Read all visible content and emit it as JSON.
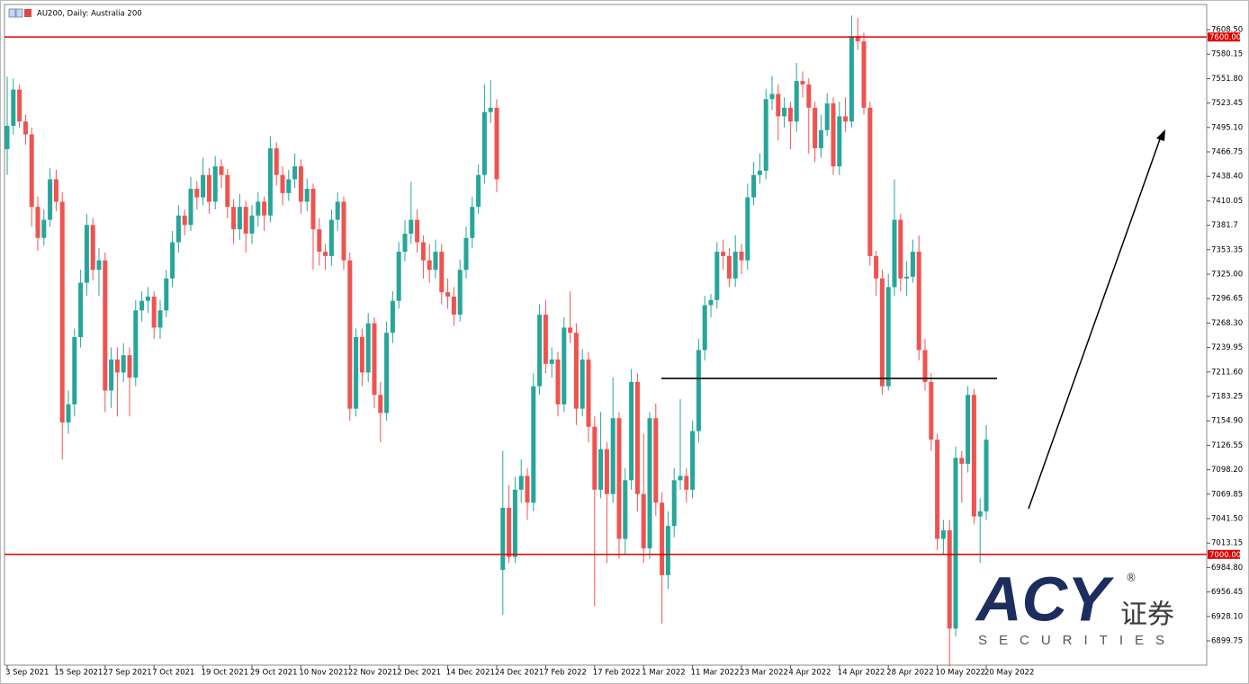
{
  "chart_data": {
    "type": "candlestick",
    "title": "AU200, Daily:  Australia 200",
    "categories": [
      "3 Sep 2021",
      null,
      null,
      null,
      null,
      null,
      null,
      null,
      "15 Sep 2021",
      null,
      null,
      null,
      null,
      null,
      null,
      null,
      "27 Sep 2021",
      null,
      null,
      null,
      null,
      null,
      null,
      null,
      "7 Oct 2021",
      null,
      null,
      null,
      null,
      null,
      null,
      null,
      "19 Oct 2021",
      null,
      null,
      null,
      null,
      null,
      null,
      null,
      "29 Oct 2021",
      null,
      null,
      null,
      null,
      null,
      null,
      null,
      "10 Nov 2021",
      null,
      null,
      null,
      null,
      null,
      null,
      null,
      "22 Nov 2021",
      null,
      null,
      null,
      null,
      null,
      null,
      null,
      "2 Dec 2021",
      null,
      null,
      null,
      null,
      null,
      null,
      null,
      "14 Dec 2021",
      null,
      null,
      null,
      null,
      null,
      null,
      null,
      "24 Dec 2021",
      null,
      null,
      null,
      null,
      null,
      null,
      null,
      "7 Feb 2022",
      null,
      null,
      null,
      null,
      null,
      null,
      null,
      "17 Feb 2022",
      null,
      null,
      null,
      null,
      null,
      null,
      null,
      "1 Mar 2022",
      null,
      null,
      null,
      null,
      null,
      null,
      null,
      "11 Mar 2022",
      null,
      null,
      null,
      null,
      null,
      null,
      null,
      "23 Mar 2022",
      null,
      null,
      null,
      null,
      null,
      null,
      null,
      "4 Apr 2022",
      null,
      null,
      null,
      null,
      null,
      null,
      null,
      "14 Apr 2022",
      null,
      null,
      null,
      null,
      null,
      null,
      null,
      "28 Apr 2022",
      null,
      null,
      null,
      null,
      null,
      null,
      null,
      "10 May 2022",
      null,
      null,
      null,
      null,
      null,
      null,
      null,
      "20 May 2022"
    ],
    "open": [
      7470,
      7497,
      7539,
      7502,
      7487,
      7403,
      7367,
      7388,
      7435,
      7409,
      7153,
      7174,
      7252,
      7315,
      7382,
      7330,
      7341,
      7190,
      7226,
      7211,
      7231,
      7205,
      7283,
      7294,
      7299,
      7263,
      7283,
      7320,
      7362,
      7393,
      7382,
      7424,
      7414,
      7440,
      7409,
      7450,
      7440,
      7403,
      7377,
      7403,
      7372,
      7393,
      7409,
      7393,
      7471,
      7440,
      7419,
      7435,
      7450,
      7409,
      7424,
      7377,
      7351,
      7346,
      7388,
      7409,
      7341,
      7169,
      7252,
      7211,
      7268,
      7185,
      7164,
      7257,
      7294,
      7351,
      7372,
      7388,
      7362,
      7341,
      7330,
      7351,
      7304,
      7299,
      7278,
      7330,
      7367,
      7403,
      7440,
      7513,
      7518,
      6982,
      7054,
      6997,
      7075,
      7091,
      7060,
      7195,
      7278,
      7221,
      7226,
      7174,
      7263,
      7257,
      7169,
      7226,
      7148,
      7075,
      7122,
      7070,
      7158,
      7018,
      7086,
      7200,
      7070,
      7007,
      7158,
      7060,
      6976,
      7033,
      7086,
      7091,
      7075,
      7143,
      7237,
      7289,
      7295,
      7351,
      7346,
      7320,
      7351,
      7341,
      7414,
      7440,
      7445,
      7528,
      7534,
      7508,
      7518,
      7502,
      7549,
      7545,
      7518,
      7471,
      7492,
      7523,
      7450,
      7508,
      7502,
      7601,
      7595,
      7518,
      7346,
      7320,
      7195,
      7310,
      7388,
      7320,
      7322,
      7351,
      7237,
      7200,
      7133,
      7018,
      7028,
      6914,
      7112,
      7105,
      7185,
      7044,
      7050
    ],
    "high": [
      7554,
      7552,
      7545,
      7510,
      7495,
      7415,
      7400,
      7448,
      7446,
      7420,
      7190,
      7262,
      7330,
      7395,
      7390,
      7355,
      7350,
      7240,
      7240,
      7245,
      7240,
      7295,
      7305,
      7310,
      7305,
      7295,
      7330,
      7375,
      7405,
      7400,
      7438,
      7433,
      7460,
      7448,
      7462,
      7458,
      7447,
      7412,
      7418,
      7410,
      7405,
      7420,
      7415,
      7485,
      7478,
      7450,
      7446,
      7465,
      7458,
      7436,
      7430,
      7390,
      7360,
      7400,
      7420,
      7415,
      7350,
      7262,
      7262,
      7280,
      7275,
      7200,
      7270,
      7305,
      7362,
      7388,
      7432,
      7400,
      7370,
      7360,
      7365,
      7360,
      7320,
      7310,
      7342,
      7380,
      7415,
      7452,
      7545,
      7550,
      7528,
      7120,
      7080,
      7090,
      7110,
      7100,
      7210,
      7290,
      7295,
      7240,
      7235,
      7275,
      7305,
      7268,
      7238,
      7235,
      7160,
      7165,
      7130,
      7205,
      7165,
      7100,
      7215,
      7210,
      7140,
      7165,
      7175,
      7072,
      7050,
      7100,
      7180,
      7100,
      7155,
      7250,
      7300,
      7302,
      7362,
      7365,
      7355,
      7370,
      7360,
      7430,
      7455,
      7465,
      7540,
      7555,
      7545,
      7530,
      7525,
      7570,
      7560,
      7552,
      7525,
      7510,
      7535,
      7530,
      7525,
      7530,
      7625,
      7622,
      7605,
      7525,
      7352,
      7330,
      7325,
      7435,
      7395,
      7340,
      7365,
      7370,
      7250,
      7210,
      7140,
      7040,
      7040,
      7125,
      7120,
      7195,
      7192,
      7065,
      7150
    ],
    "low": [
      7440,
      7487,
      7495,
      7475,
      7380,
      7352,
      7358,
      7380,
      7398,
      7110,
      7140,
      7160,
      7240,
      7300,
      7318,
      7300,
      7165,
      7170,
      7160,
      7200,
      7160,
      7195,
      7270,
      7280,
      7250,
      7250,
      7275,
      7310,
      7350,
      7370,
      7375,
      7400,
      7405,
      7395,
      7400,
      7425,
      7390,
      7360,
      7365,
      7350,
      7360,
      7380,
      7375,
      7385,
      7428,
      7405,
      7410,
      7425,
      7395,
      7398,
      7330,
      7335,
      7330,
      7335,
      7375,
      7330,
      7155,
      7160,
      7195,
      7200,
      7170,
      7130,
      7155,
      7245,
      7285,
      7340,
      7360,
      7350,
      7320,
      7315,
      7320,
      7290,
      7285,
      7265,
      7270,
      7320,
      7355,
      7395,
      7430,
      7500,
      7420,
      6930,
      6990,
      6990,
      7060,
      7040,
      7050,
      7185,
      7210,
      7205,
      7160,
      7165,
      7245,
      7150,
      7160,
      7130,
      6940,
      7065,
      6990,
      7060,
      6995,
      7000,
      7075,
      7050,
      6990,
      6995,
      7045,
      6920,
      6960,
      7020,
      7075,
      7060,
      7065,
      7130,
      7225,
      7275,
      7285,
      7330,
      7310,
      7310,
      7325,
      7330,
      7405,
      7430,
      7435,
      7515,
      7480,
      7495,
      7470,
      7490,
      7530,
      7465,
      7455,
      7460,
      7485,
      7440,
      7440,
      7490,
      7495,
      7585,
      7510,
      7335,
      7300,
      7185,
      7190,
      7300,
      7305,
      7300,
      7315,
      7225,
      7190,
      7120,
      7005,
      7000,
      6870,
      6905,
      7060,
      7095,
      7035,
      6990,
      7040
    ],
    "close": [
      7497,
      7539,
      7502,
      7487,
      7403,
      7367,
      7388,
      7435,
      7409,
      7153,
      7174,
      7252,
      7315,
      7382,
      7330,
      7341,
      7190,
      7226,
      7211,
      7231,
      7205,
      7283,
      7294,
      7299,
      7263,
      7283,
      7320,
      7362,
      7393,
      7382,
      7424,
      7414,
      7440,
      7409,
      7450,
      7440,
      7403,
      7377,
      7403,
      7372,
      7393,
      7409,
      7393,
      7471,
      7440,
      7419,
      7435,
      7450,
      7409,
      7424,
      7377,
      7351,
      7346,
      7388,
      7409,
      7341,
      7169,
      7252,
      7211,
      7268,
      7185,
      7164,
      7257,
      7294,
      7351,
      7372,
      7388,
      7362,
      7341,
      7330,
      7351,
      7304,
      7299,
      7278,
      7330,
      7367,
      7403,
      7440,
      7513,
      7518,
      7435,
      7054,
      6997,
      7075,
      7091,
      7060,
      7195,
      7278,
      7221,
      7226,
      7174,
      7263,
      7257,
      7169,
      7226,
      7148,
      7075,
      7122,
      7070,
      7158,
      7018,
      7086,
      7200,
      7070,
      7007,
      7158,
      7060,
      6976,
      7033,
      7086,
      7091,
      7075,
      7143,
      7237,
      7289,
      7295,
      7351,
      7346,
      7320,
      7351,
      7341,
      7414,
      7440,
      7445,
      7528,
      7534,
      7508,
      7518,
      7502,
      7549,
      7545,
      7518,
      7471,
      7492,
      7523,
      7450,
      7508,
      7502,
      7601,
      7595,
      7518,
      7346,
      7320,
      7195,
      7310,
      7388,
      7320,
      7322,
      7351,
      7237,
      7200,
      7133,
      7018,
      7028,
      6914,
      7112,
      7105,
      7185,
      7044,
      7050,
      7133
    ],
    "up_color": "#26a69a",
    "down_color": "#ef5350",
    "ylim": [
      6871.6,
      7637.7
    ],
    "yticks": [
      {
        "value": 7608.5,
        "label": "7608.50"
      },
      7580.15,
      {
        "value": 7551.8,
        "label": "7551.80"
      },
      7523.45,
      {
        "value": 7495.1,
        "label": "7495.10"
      },
      7466.75,
      {
        "value": 7438.4,
        "label": "7438.40"
      },
      7410.05,
      7381.7,
      7353.35,
      {
        "value": 7325,
        "label": "7325.00"
      },
      7296.65,
      {
        "value": 7268.3,
        "label": "7268.30"
      },
      7239.95,
      {
        "value": 7211.6,
        "label": "7211.60"
      },
      7183.25,
      {
        "value": 7154.9,
        "label": "7154.90"
      },
      7126.55,
      {
        "value": 7098.2,
        "label": "7098.20"
      },
      7069.85,
      {
        "value": 7041.5,
        "label": "7041.50"
      },
      7013.15,
      {
        "value": 6984.8,
        "label": "6984.80"
      },
      6956.45,
      {
        "value": 6928.1,
        "label": "6928.10"
      },
      6899.75
    ],
    "levels": [
      {
        "value": 7600,
        "label": "7600.00",
        "color": "#e00000"
      },
      {
        "value": 7000,
        "label": "7000.00",
        "color": "#e00000"
      }
    ],
    "trend_line": {
      "value": 7204,
      "color": "#000000"
    }
  },
  "watermark": {
    "brand": "ACY",
    "chinese": "证券",
    "subtitle": "SECURITIES",
    "mark": "®"
  }
}
